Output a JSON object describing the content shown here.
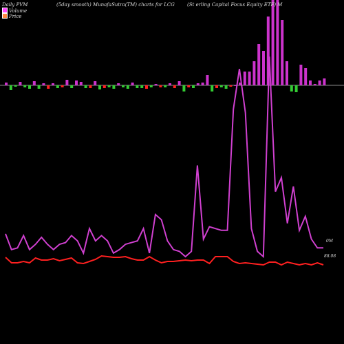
{
  "header": {
    "left": "Daily PVM",
    "middle": "(5day smooth) MunafaSutra(TM) charts for LCG",
    "right": "(St                    erling Capital Focus Equity ETF) M"
  },
  "legend": [
    {
      "label": "Volume",
      "color": "#ff44ff"
    },
    {
      "label": "Price",
      "color": "#ff8844"
    }
  ],
  "right_labels": {
    "volume": "0M",
    "price": "88.08"
  },
  "colors": {
    "background": "#000000",
    "volume_line": "#d040d0",
    "price_line": "#ff2020",
    "bar_up": "#cc33cc",
    "bar_down": "#ff2020",
    "bar_green": "#33cc33",
    "zero_line": "#bbbbbb"
  },
  "chart_data": {
    "type": "line",
    "title": "Daily PVM (5day smooth) MunafaSutra(TM) charts for LCG",
    "series": [
      {
        "name": "Volume",
        "values": [
          13,
          4,
          5,
          12,
          4,
          7,
          11,
          7,
          4,
          7,
          8,
          12,
          9,
          2,
          16,
          9,
          12,
          9,
          2,
          4,
          7,
          8,
          9,
          16,
          2,
          24,
          21,
          9,
          4,
          3,
          0,
          3,
          52,
          10,
          17,
          16,
          15,
          15,
          84,
          107,
          82,
          16,
          3,
          0,
          114,
          37,
          45,
          19,
          40,
          15,
          23,
          10,
          5,
          5
        ]
      },
      {
        "name": "Price",
        "values": [
          14,
          6,
          6,
          8,
          6,
          13,
          10,
          10,
          12,
          9,
          11,
          13,
          6,
          5,
          8,
          11,
          16,
          15,
          14,
          14,
          15,
          12,
          10,
          10,
          15,
          10,
          6,
          8,
          8,
          9,
          10,
          9,
          10,
          10,
          5,
          15,
          15,
          15,
          8,
          5,
          6,
          5,
          4,
          3,
          7,
          7,
          3,
          7,
          5,
          3,
          5,
          3,
          6,
          3
        ]
      },
      {
        "name": "Bars",
        "values": [
          5,
          8,
          -4,
          -4,
          -6,
          -3,
          -4,
          3,
          -3,
          5,
          -5,
          4,
          -3,
          -4,
          -6,
          4,
          5,
          -3,
          -3,
          -5,
          4,
          -4,
          -3,
          2,
          -3,
          3,
          -3,
          -5,
          -3,
          1,
          -2,
          2,
          -4,
          4,
          -3,
          5,
          -10,
          -3,
          -2,
          4,
          18,
          -3,
          -10,
          -3,
          -2,
          -8,
          -4,
          0,
          22,
          22,
          28,
          95,
          60,
          115,
          150,
          118,
          100,
          95,
          35,
          -10,
          38,
          32,
          24,
          14,
          14,
          14,
          12,
          8
        ]
      }
    ],
    "bar_pct": [
      4,
      -7,
      -2,
      5,
      -3,
      -5,
      6,
      -5,
      3,
      -5,
      3,
      -4,
      -3,
      8,
      -4,
      7,
      5,
      -4,
      -4,
      6,
      -6,
      -4,
      -3,
      -5,
      3,
      -3,
      -5,
      4,
      -4,
      -4,
      -5,
      -3,
      2,
      -3,
      -3,
      3,
      -4,
      6,
      -9,
      -3,
      -4,
      3,
      4,
      15,
      -9,
      -4,
      -3,
      -5,
      -2,
      0,
      4,
      20,
      20,
      35,
      60,
      50,
      100,
      130,
      125,
      95,
      35,
      -9,
      -10,
      30,
      25,
      7,
      2,
      7,
      10
    ]
  }
}
